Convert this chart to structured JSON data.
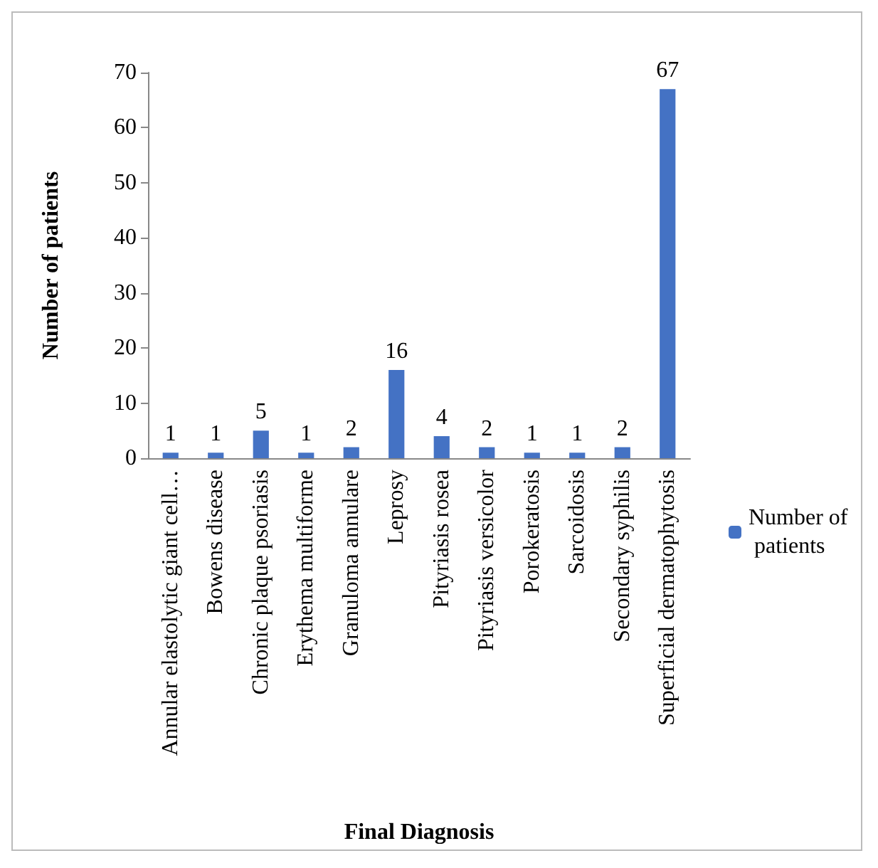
{
  "chart_data": {
    "type": "bar",
    "xlabel": "Final Diagnosis",
    "ylabel": "Number of patients",
    "categories": [
      "Annular elastolytic giant cell…",
      "Bowens disease",
      "Chronic plaque psoriasis",
      "Erythema multiforme",
      "Granuloma annulare",
      "Leprosy",
      "Pityriasis rosea",
      "Pityriasis versicolor",
      "Porokeratosis",
      "Sarcoidosis",
      "Secondary syphilis",
      "Superficial dermatophytosis"
    ],
    "series": [
      {
        "name": "Number of patients",
        "color": "#4472c4",
        "values": [
          1,
          1,
          5,
          1,
          2,
          16,
          4,
          2,
          1,
          1,
          2,
          67
        ]
      }
    ],
    "ylim": [
      0,
      70
    ],
    "yticks": [
      0,
      10,
      20,
      30,
      40,
      50,
      60,
      70
    ],
    "data_labels": true,
    "grid": false,
    "legend": "right"
  }
}
